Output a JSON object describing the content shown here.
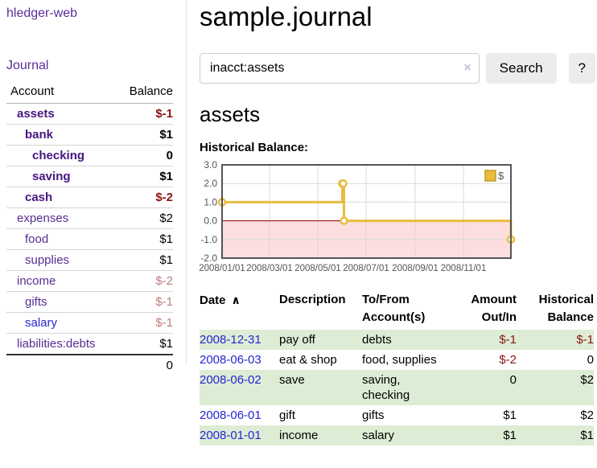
{
  "colors": {
    "link_purple": "#552e91",
    "link_purple_bold": "#46167f",
    "link_blue": "#2626d8",
    "negative_strong": "#8b1414",
    "negative_soft": "#bf7d7d",
    "row_green": "#ddedd5",
    "chart_line_gold": "#e8bc3e",
    "chart_negative_fill": "#fcdede",
    "zero_line_red": "#8b0000"
  },
  "sidebar": {
    "app_title": "hledger-web",
    "nav_journal": "Journal",
    "accounts_table": {
      "col_account": "Account",
      "col_balance": "Balance",
      "rows": [
        {
          "name": "assets",
          "balance": "$-1",
          "depth": 1,
          "bold": true,
          "balance_tone": "neg-strong"
        },
        {
          "name": "bank",
          "balance": "$1",
          "depth": 2,
          "bold": true,
          "balance_tone": "pos"
        },
        {
          "name": "checking",
          "balance": "0",
          "depth": 3,
          "bold": true,
          "balance_tone": "pos"
        },
        {
          "name": "saving",
          "balance": "$1",
          "depth": 3,
          "bold": true,
          "balance_tone": "pos"
        },
        {
          "name": "cash",
          "balance": "$-2",
          "depth": 2,
          "bold": true,
          "balance_tone": "neg-strong"
        },
        {
          "name": "expenses",
          "balance": "$2",
          "depth": 1,
          "bold": false,
          "balance_tone": "pos"
        },
        {
          "name": "food",
          "balance": "$1",
          "depth": 2,
          "bold": false,
          "balance_tone": "pos"
        },
        {
          "name": "supplies",
          "balance": "$1",
          "depth": 2,
          "bold": false,
          "balance_tone": "pos"
        },
        {
          "name": "income",
          "balance": "$-2",
          "depth": 1,
          "bold": false,
          "balance_tone": "neg-soft"
        },
        {
          "name": "gifts",
          "balance": "$-1",
          "depth": 2,
          "bold": false,
          "balance_tone": "neg-soft"
        },
        {
          "name": "salary",
          "balance": "$-1",
          "depth": 2,
          "bold": false,
          "balance_tone": "neg-soft",
          "link_tone": "blue"
        },
        {
          "name": "liabilities:debts",
          "balance": "$1",
          "depth": 1,
          "bold": false,
          "balance_tone": "pos"
        }
      ],
      "total": "0"
    }
  },
  "main": {
    "title": "sample.journal",
    "search": {
      "value": "inacct:assets",
      "clear_icon": "×",
      "button_label": "Search",
      "help_label": "?"
    },
    "account_heading": "assets",
    "chart_label": "Historical Balance:",
    "register": {
      "sort_icon": "∧",
      "headers": [
        {
          "line1": "Date"
        },
        {
          "line1": "Description"
        },
        {
          "line1": "To/From",
          "line2": "Account(s)"
        },
        {
          "line1": "Amount",
          "line2": "Out/In"
        },
        {
          "line1": "Historical",
          "line2": "Balance"
        }
      ],
      "rows": [
        {
          "date": "2008-12-31",
          "description": "pay off",
          "accounts": [
            "debts"
          ],
          "amount": "$-1",
          "amount_neg": true,
          "balance": "$-1",
          "balance_neg": true,
          "shaded": true
        },
        {
          "date": "2008-06-03",
          "description": "eat & shop",
          "accounts": [
            "food, supplies"
          ],
          "amount": "$-2",
          "amount_neg": true,
          "balance": "0",
          "balance_neg": false,
          "shaded": false
        },
        {
          "date": "2008-06-02",
          "description": "save",
          "accounts": [
            "saving,",
            "checking"
          ],
          "amount": "0",
          "amount_neg": false,
          "balance": "$2",
          "balance_neg": false,
          "shaded": true
        },
        {
          "date": "2008-06-01",
          "description": "gift",
          "accounts": [
            "gifts"
          ],
          "amount": "$1",
          "amount_neg": false,
          "balance": "$2",
          "balance_neg": false,
          "shaded": false
        },
        {
          "date": "2008-01-01",
          "description": "income",
          "accounts": [
            "salary"
          ],
          "amount": "$1",
          "amount_neg": false,
          "balance": "$1",
          "balance_neg": false,
          "shaded": true
        }
      ]
    }
  },
  "chart_data": {
    "type": "line",
    "title": "Historical Balance:",
    "step": true,
    "series": [
      {
        "name": "$",
        "color": "#e8bc3e",
        "points": [
          [
            "2008-01-01",
            1
          ],
          [
            "2008-06-01",
            2
          ],
          [
            "2008-06-02",
            2
          ],
          [
            "2008-06-03",
            0
          ],
          [
            "2008-12-31",
            -1
          ]
        ]
      }
    ],
    "x_domain": [
      "2008-01-01",
      "2008-12-31"
    ],
    "x_ticks": [
      {
        "date": "2008-01-01",
        "label": "2008/01/01"
      },
      {
        "date": "2008-03-01",
        "label": "2008/03/01"
      },
      {
        "date": "2008-05-01",
        "label": "2008/05/01"
      },
      {
        "date": "2008-07-01",
        "label": "2008/07/01"
      },
      {
        "date": "2008-09-01",
        "label": "2008/09/01"
      },
      {
        "date": "2008-11-01",
        "label": "2008/11/01"
      }
    ],
    "y_ticks": [
      3.0,
      2.0,
      1.0,
      0.0,
      -1.0,
      -2.0
    ],
    "ylim": [
      -2,
      3
    ],
    "legend_label": "$",
    "legend_position": "top-right",
    "grid": true,
    "negative_region_fill": "#fcdede",
    "zero_line_color": "#8b0000"
  }
}
